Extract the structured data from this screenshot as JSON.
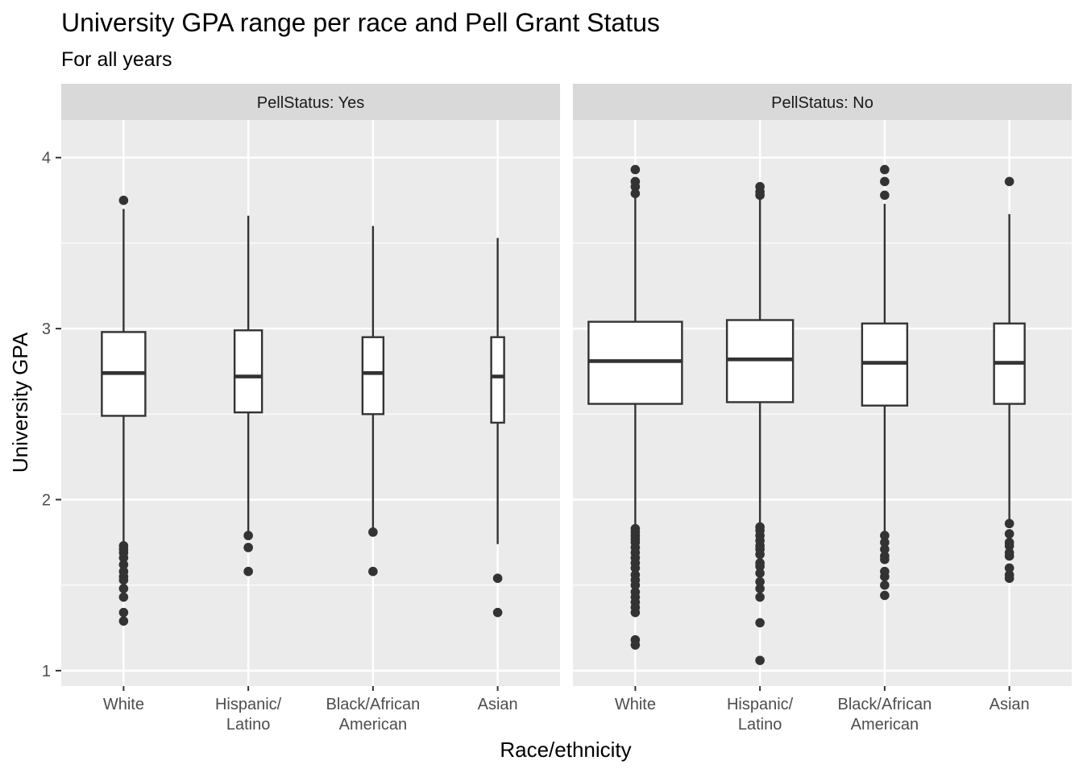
{
  "chart_data": {
    "type": "boxplot",
    "title": "University GPA range per race and Pell Grant Status",
    "subtitle": "For all years",
    "xlabel": "Race/ethnicity",
    "ylabel": "University GPA",
    "ylim": [
      0.91,
      4.22
    ],
    "y_ticks": [
      "1",
      "2",
      "3",
      "4"
    ],
    "y_tick_values": [
      1,
      2,
      3,
      4
    ],
    "y_minor_ticks": [
      1.5,
      2.5,
      3.5
    ],
    "categories": [
      [
        "White"
      ],
      [
        "Hispanic/",
        "Latino"
      ],
      [
        "Black/African",
        "American"
      ],
      [
        "Asian"
      ]
    ],
    "colors": {
      "panel_bg": "#ebebeb",
      "strip_bg": "#d9d9d9",
      "grid": "#ffffff",
      "box_fill": "#ffffff",
      "box_line": "#333333",
      "outlier": "#333333"
    },
    "facets": [
      {
        "label": "PellStatus: Yes",
        "boxes": [
          {
            "q1": 2.49,
            "median": 2.74,
            "q3": 2.98,
            "lower": 1.75,
            "upper": 3.7,
            "outliers": [
              1.73,
              1.71,
              1.69,
              1.66,
              1.62,
              1.58,
              1.55,
              1.53,
              1.48,
              1.43,
              1.34,
              1.29,
              3.75
            ]
          },
          {
            "q1": 2.51,
            "median": 2.72,
            "q3": 2.99,
            "lower": 1.8,
            "upper": 3.66,
            "outliers": [
              1.79,
              1.72,
              1.58
            ]
          },
          {
            "q1": 2.5,
            "median": 2.74,
            "q3": 2.95,
            "lower": 1.83,
            "upper": 3.6,
            "outliers": [
              1.81,
              1.58
            ]
          },
          {
            "q1": 2.45,
            "median": 2.72,
            "q3": 2.95,
            "lower": 1.74,
            "upper": 3.53,
            "outliers": [
              1.54,
              1.34
            ]
          }
        ]
      },
      {
        "label": "PellStatus: No",
        "boxes": [
          {
            "q1": 2.56,
            "median": 2.81,
            "q3": 3.04,
            "lower": 1.84,
            "upper": 3.78,
            "outliers": [
              3.93,
              3.86,
              3.83,
              3.79,
              1.83,
              1.81,
              1.79,
              1.77,
              1.75,
              1.72,
              1.69,
              1.66,
              1.63,
              1.6,
              1.56,
              1.53,
              1.5,
              1.46,
              1.43,
              1.4,
              1.37,
              1.34,
              1.18,
              1.15
            ]
          },
          {
            "q1": 2.57,
            "median": 2.82,
            "q3": 3.05,
            "lower": 1.85,
            "upper": 3.77,
            "outliers": [
              3.83,
              3.8,
              3.78,
              1.84,
              1.82,
              1.79,
              1.76,
              1.73,
              1.71,
              1.68,
              1.63,
              1.61,
              1.57,
              1.52,
              1.48,
              1.43,
              1.28,
              1.06
            ]
          },
          {
            "q1": 2.55,
            "median": 2.8,
            "q3": 3.03,
            "lower": 1.8,
            "upper": 3.73,
            "outliers": [
              3.93,
              3.86,
              3.78,
              1.79,
              1.75,
              1.71,
              1.67,
              1.65,
              1.58,
              1.55,
              1.5,
              1.44
            ]
          },
          {
            "q1": 2.56,
            "median": 2.8,
            "q3": 3.03,
            "lower": 1.88,
            "upper": 3.67,
            "outliers": [
              3.86,
              1.86,
              1.8,
              1.75,
              1.73,
              1.69,
              1.67,
              1.6,
              1.56,
              1.54
            ]
          }
        ]
      }
    ]
  }
}
